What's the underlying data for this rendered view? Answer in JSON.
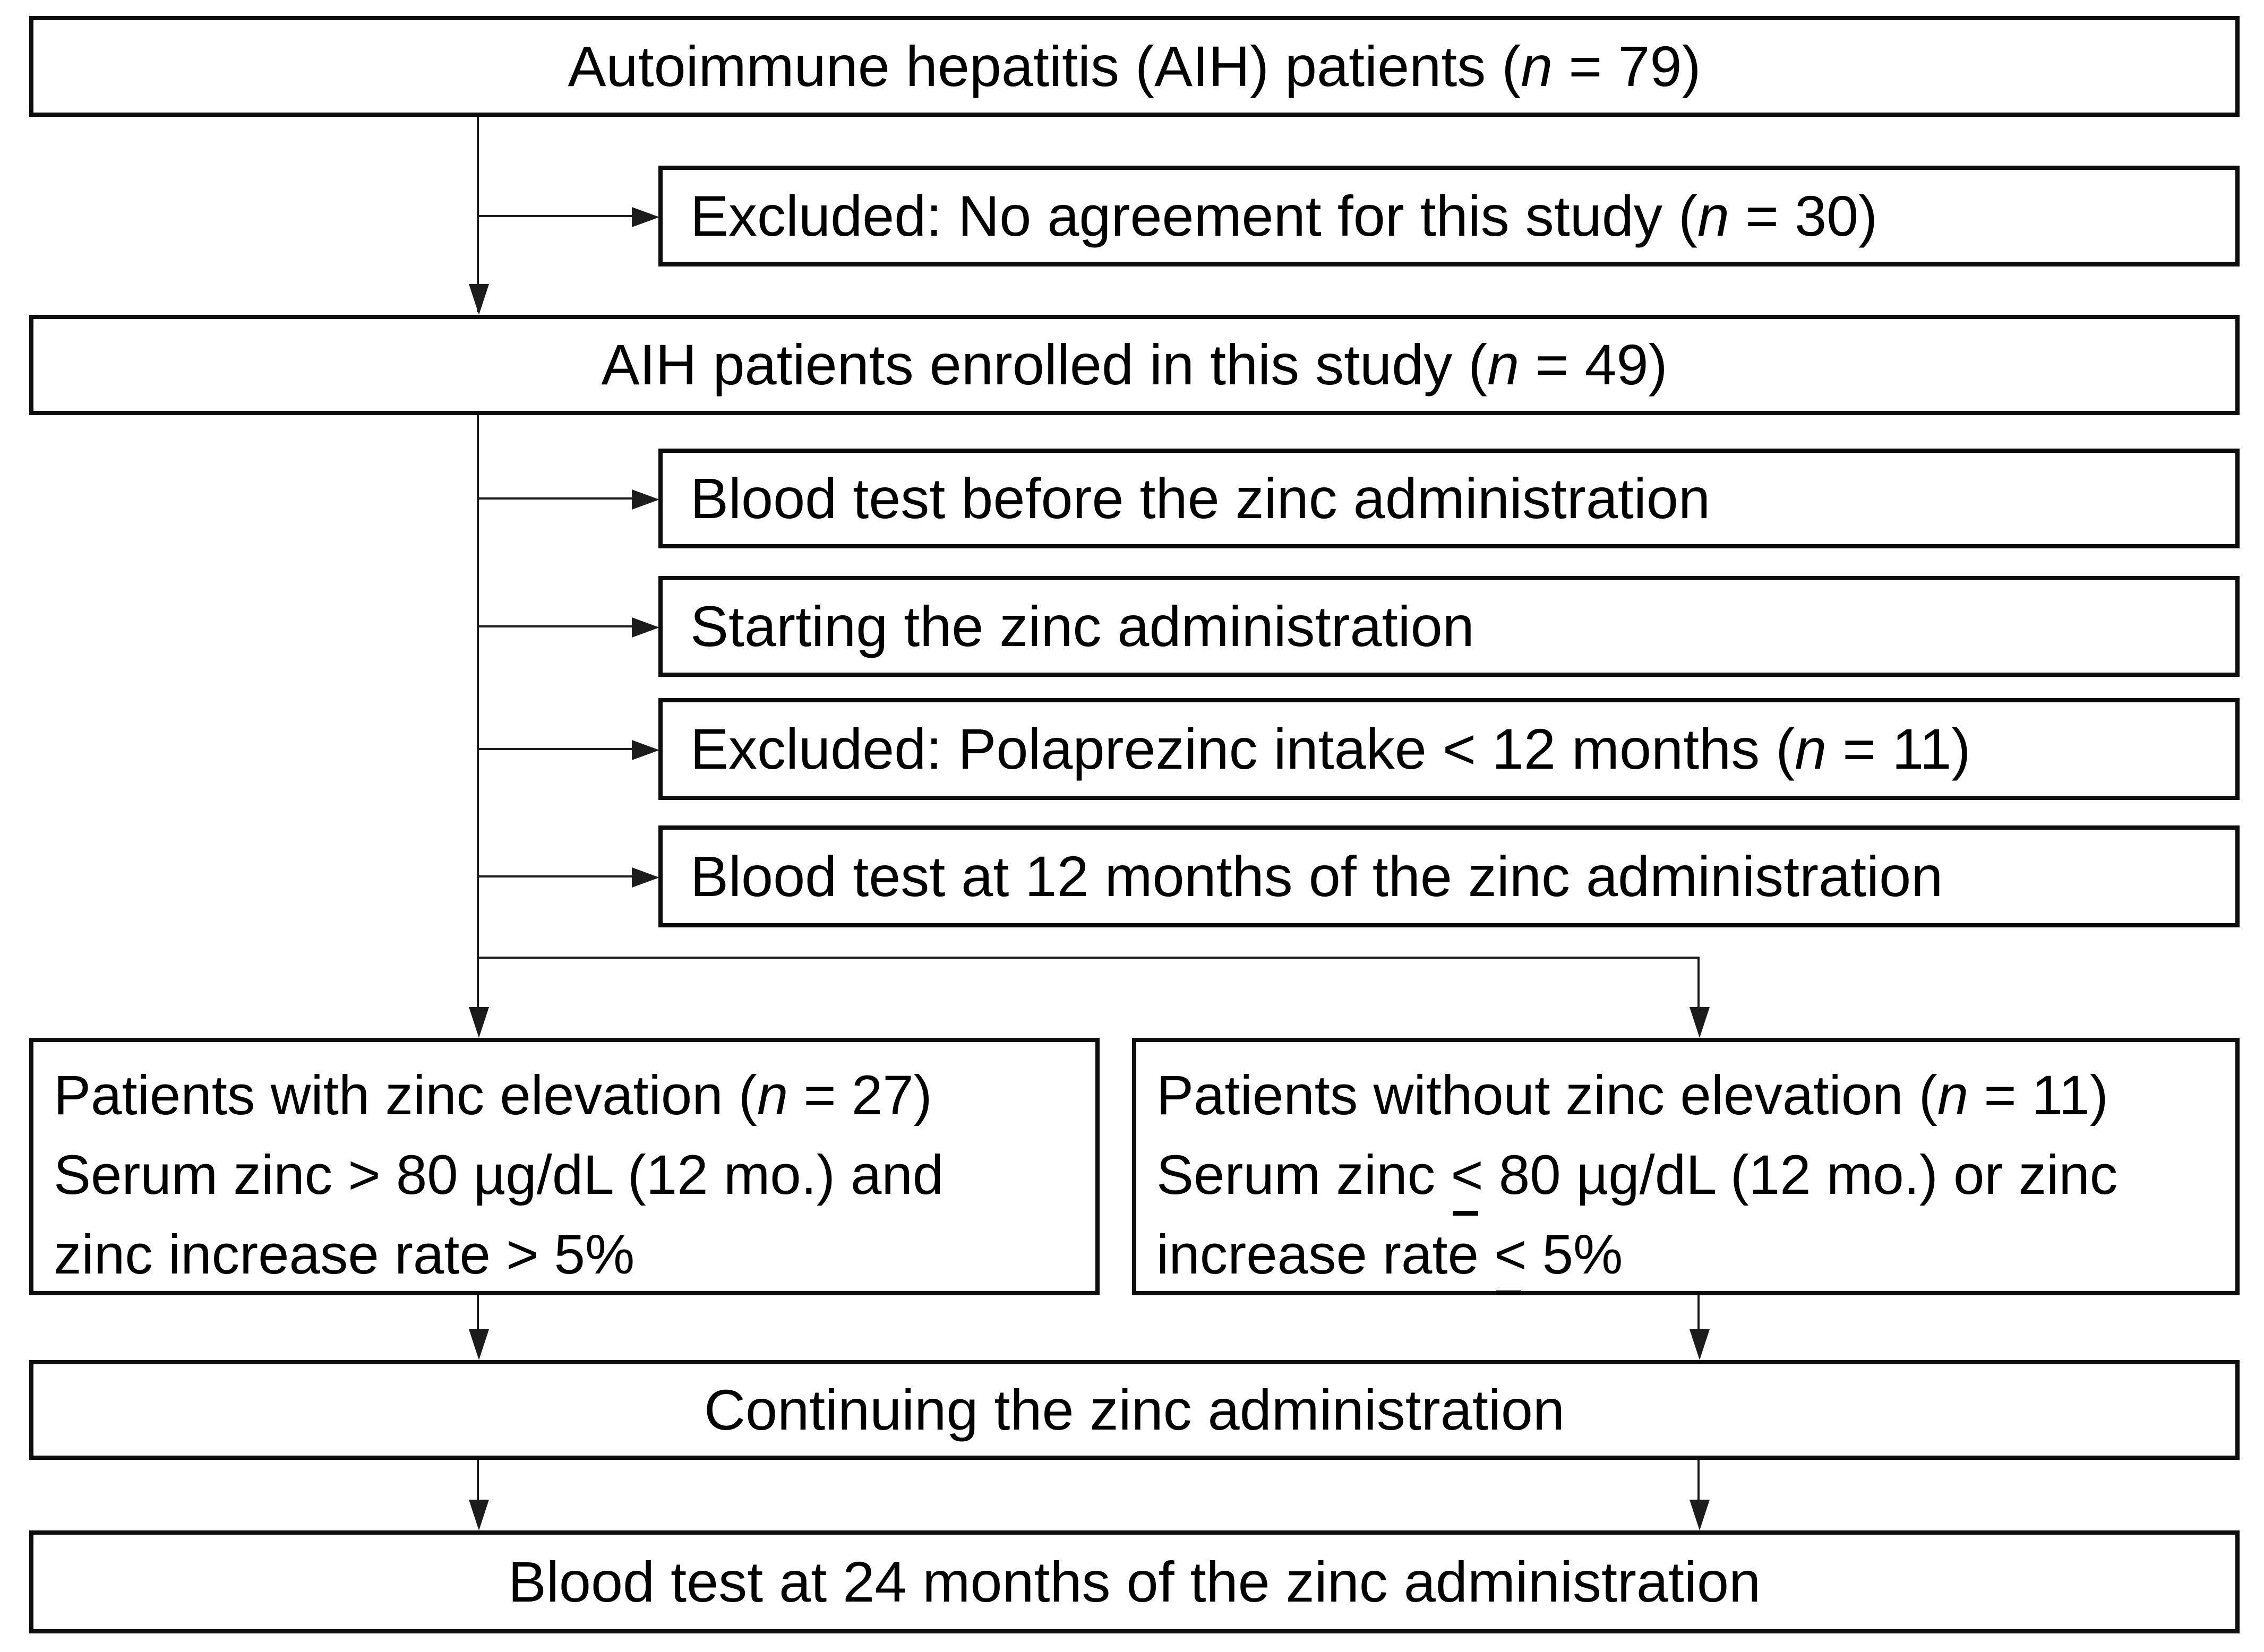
{
  "figure": {
    "type": "study-flow-diagram",
    "background_color": "#ffffff",
    "box_border_color": "#0d0d0d",
    "line_color": "#1c1c1c",
    "text_color": "#000000"
  },
  "boxes": [
    {
      "id": "aih-patients",
      "lines": [
        {
          "segments": [
            {
              "t": "Autoimmune hepatitis (AIH) patients ("
            },
            {
              "t": "n",
              "i": true
            },
            {
              "t": " = 79)"
            }
          ]
        }
      ]
    },
    {
      "id": "excluded-no-agreement",
      "lines": [
        {
          "segments": [
            {
              "t": "Excluded: No agreement for this study ("
            },
            {
              "t": "n",
              "i": true
            },
            {
              "t": " = 30)"
            }
          ]
        }
      ]
    },
    {
      "id": "enrolled",
      "lines": [
        {
          "segments": [
            {
              "t": "AIH patients enrolled in this study ("
            },
            {
              "t": "n",
              "i": true
            },
            {
              "t": " = 49)"
            }
          ]
        }
      ]
    },
    {
      "id": "blood-test-before",
      "lines": [
        {
          "segments": [
            {
              "t": "Blood test before the zinc administration"
            }
          ]
        }
      ]
    },
    {
      "id": "starting-zinc",
      "lines": [
        {
          "segments": [
            {
              "t": "Starting the zinc administration"
            }
          ]
        }
      ]
    },
    {
      "id": "excluded-polaprezinc",
      "lines": [
        {
          "segments": [
            {
              "t": "Excluded: Polaprezinc intake < 12 months ("
            },
            {
              "t": "n",
              "i": true
            },
            {
              "t": " = 11)"
            }
          ]
        }
      ]
    },
    {
      "id": "blood-test-12mo",
      "lines": [
        {
          "segments": [
            {
              "t": "Blood test at 12 months of the zinc administration"
            }
          ]
        }
      ]
    },
    {
      "id": "with-zinc-elevation",
      "lines": [
        {
          "segments": [
            {
              "t": "Patients with zinc elevation ("
            },
            {
              "t": "n",
              "i": true
            },
            {
              "t": " = 27)"
            }
          ]
        },
        {
          "segments": [
            {
              "t": "Serum zinc > 80 µg/dL (12 mo.) and"
            }
          ]
        },
        {
          "segments": [
            {
              "t": "zinc increase rate > 5%"
            }
          ]
        }
      ]
    },
    {
      "id": "without-zinc-elevation",
      "lines": [
        {
          "segments": [
            {
              "t": "Patients without zinc elevation ("
            },
            {
              "t": "n",
              "i": true
            },
            {
              "t": " = 11)"
            }
          ]
        },
        {
          "segments": [
            {
              "t": "Serum zinc "
            },
            {
              "t": "<",
              "u": true
            },
            {
              "t": " 80 µg/dL (12 mo.) or zinc"
            }
          ]
        },
        {
          "segments": [
            {
              "t": "increase rate "
            },
            {
              "t": "<",
              "u": true
            },
            {
              "t": " 5%"
            }
          ]
        }
      ]
    },
    {
      "id": "continuing-zinc",
      "lines": [
        {
          "segments": [
            {
              "t": "Continuing the zinc administration"
            }
          ]
        }
      ]
    },
    {
      "id": "blood-test-24mo",
      "lines": [
        {
          "segments": [
            {
              "t": "Blood test at 24 months of the zinc administration"
            }
          ]
        }
      ]
    }
  ]
}
